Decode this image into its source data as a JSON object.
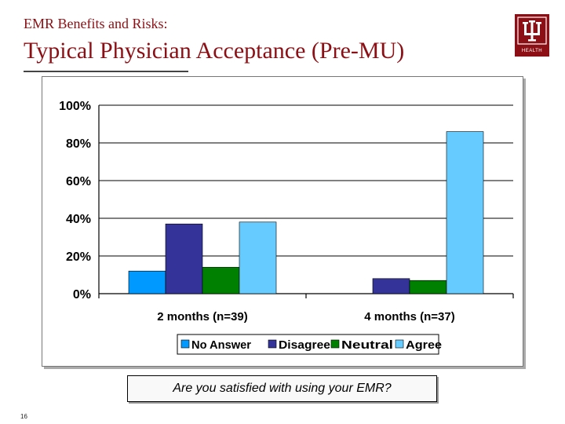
{
  "header": {
    "supertitle": "EMR Benefits and Risks:",
    "title": "Typical Physician Acceptance (Pre-MU)"
  },
  "logo": {
    "icon": "iu-trident-icon",
    "text": "HEALTH",
    "color": "#8b0f14"
  },
  "chart_data": {
    "type": "bar",
    "categories": [
      "2 months (n=39)",
      "4 months (n=37)"
    ],
    "series": [
      {
        "name": "No Answer",
        "values": [
          12,
          0
        ],
        "color": "#0099ff"
      },
      {
        "name": "Disagree",
        "values": [
          37,
          8
        ],
        "color": "#333399"
      },
      {
        "name": "Neutral",
        "values": [
          14,
          7
        ],
        "color": "#008000"
      },
      {
        "name": "Agree",
        "values": [
          38,
          86
        ],
        "color": "#66ccff"
      }
    ],
    "yticks": [
      "0%",
      "20%",
      "40%",
      "60%",
      "80%",
      "100%"
    ],
    "ylim": [
      0,
      100
    ],
    "grid": true,
    "legend_position": "bottom"
  },
  "question": "Are you satisfied with using your EMR?",
  "page_number": "16"
}
